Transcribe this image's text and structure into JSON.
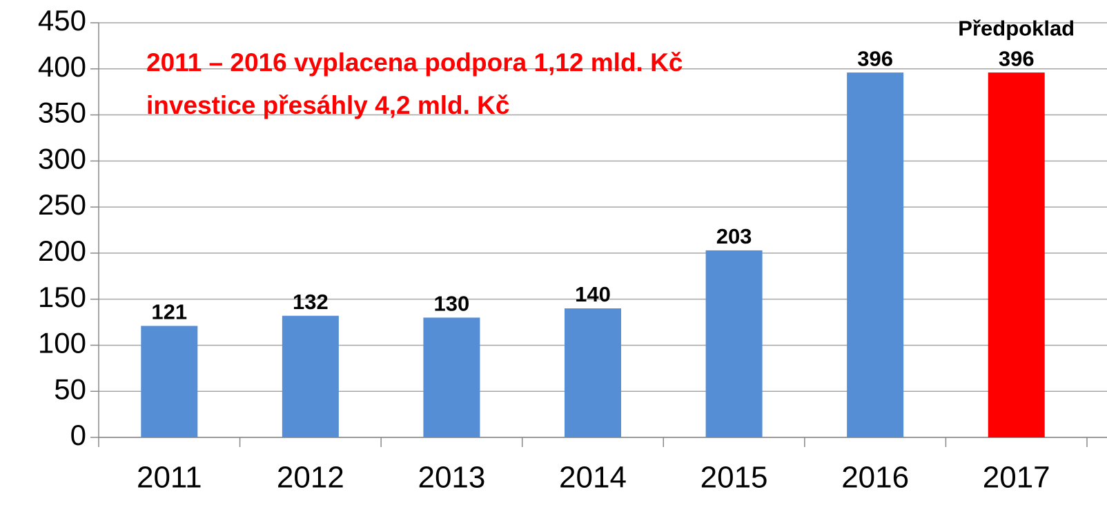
{
  "chart_data": {
    "type": "bar",
    "categories": [
      "2011",
      "2012",
      "2013",
      "2014",
      "2015",
      "2016",
      "2017"
    ],
    "values": [
      121,
      132,
      130,
      140,
      203,
      396,
      396
    ],
    "colors": [
      "#558ed5",
      "#558ed5",
      "#558ed5",
      "#558ed5",
      "#558ed5",
      "#558ed5",
      "#ff0000"
    ],
    "bar_notes": [
      null,
      null,
      null,
      null,
      null,
      null,
      "Předpoklad"
    ],
    "annotations": [
      "2011 – 2016 vyplacena podpora 1,12 mld. Kč",
      "investice přesáhly 4,2 mld. Kč"
    ],
    "annotation_color": "#ff0000",
    "ylim": [
      0,
      450
    ],
    "yticks": [
      0,
      50,
      100,
      150,
      200,
      250,
      300,
      350,
      400,
      450
    ],
    "grid": true
  }
}
